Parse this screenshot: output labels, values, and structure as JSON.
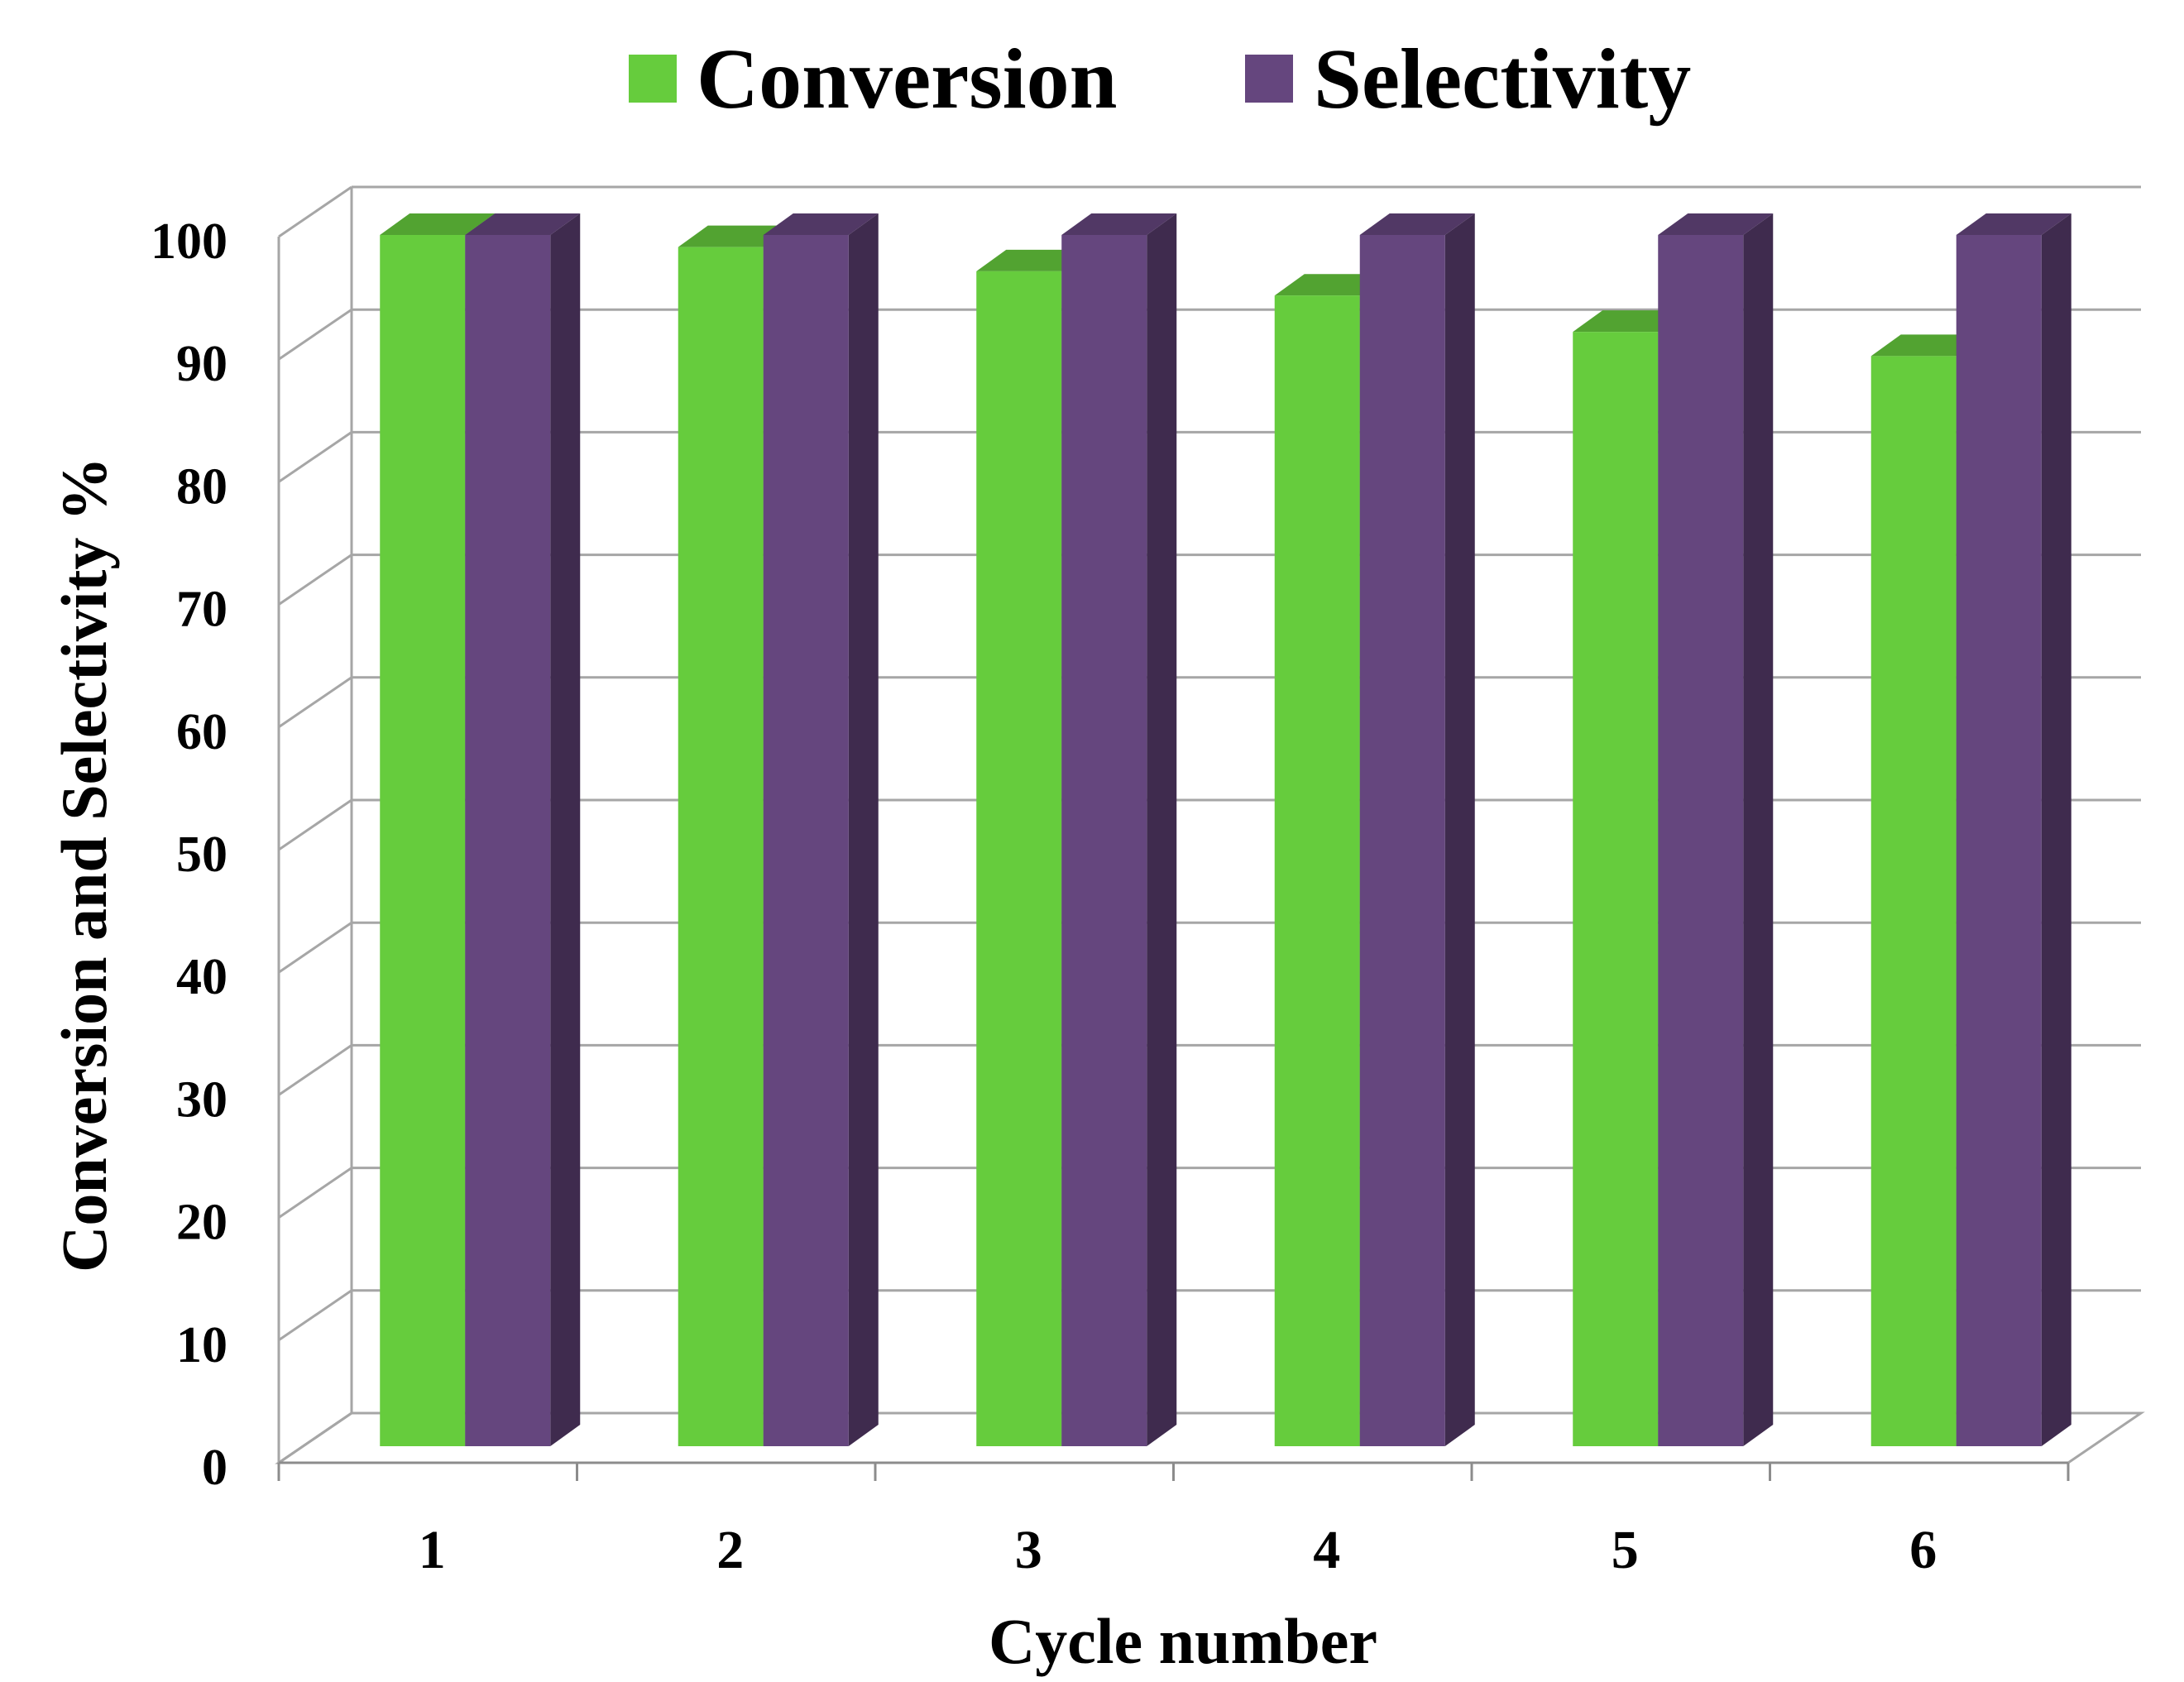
{
  "chart_data": {
    "type": "bar",
    "title": "",
    "xlabel": "Cycle number",
    "ylabel": "Conversion and Selectivity %",
    "categories": [
      "1",
      "2",
      "3",
      "4",
      "5",
      "6"
    ],
    "ylim": [
      0,
      100
    ],
    "yticks": [
      "0",
      "10",
      "20",
      "30",
      "40",
      "50",
      "60",
      "70",
      "80",
      "90",
      "100"
    ],
    "grid": true,
    "legend_position": "top",
    "series": [
      {
        "name": "Conversion",
        "color": "#66CC3D",
        "values": [
          100,
          99,
          97,
          95,
          92,
          90
        ]
      },
      {
        "name": "Selectivity",
        "color": "#65467E",
        "values": [
          100,
          100,
          100,
          100,
          100,
          100
        ]
      }
    ]
  }
}
